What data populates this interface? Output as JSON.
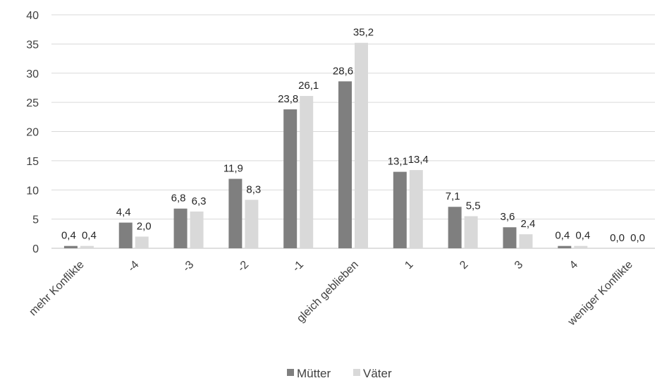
{
  "chart_data": {
    "type": "bar",
    "title": "",
    "xlabel": "",
    "ylabel": "",
    "ylim": [
      0,
      40
    ],
    "yticks": [
      0,
      5,
      10,
      15,
      20,
      25,
      30,
      35,
      40
    ],
    "grid": true,
    "legend_position": "bottom",
    "categories": [
      "mehr Konflikte",
      "-4",
      "-3",
      "-2",
      "-1",
      "gleich geblieben",
      "1",
      "2",
      "3",
      "4",
      "weniger Konflikte"
    ],
    "series": [
      {
        "name": "Mütter",
        "color": "#7f7f7f",
        "values": [
          0.4,
          4.4,
          6.8,
          11.9,
          23.8,
          28.6,
          13.1,
          7.1,
          3.6,
          0.4,
          0.0
        ],
        "labels": [
          "0,4",
          "4,4",
          "6,8",
          "11,9",
          "23,8",
          "28,6",
          "13,1",
          "7,1",
          "3,6",
          "0,4",
          "0,0"
        ]
      },
      {
        "name": "Väter",
        "color": "#d9d9d9",
        "values": [
          0.4,
          2.0,
          6.3,
          8.3,
          26.1,
          35.2,
          13.4,
          5.5,
          2.4,
          0.4,
          0.0
        ],
        "labels": [
          "0,4",
          "2,0",
          "6,3",
          "8,3",
          "26,1",
          "35,2",
          "13,4",
          "5,5",
          "2,4",
          "0,4",
          "0,0"
        ]
      }
    ]
  }
}
